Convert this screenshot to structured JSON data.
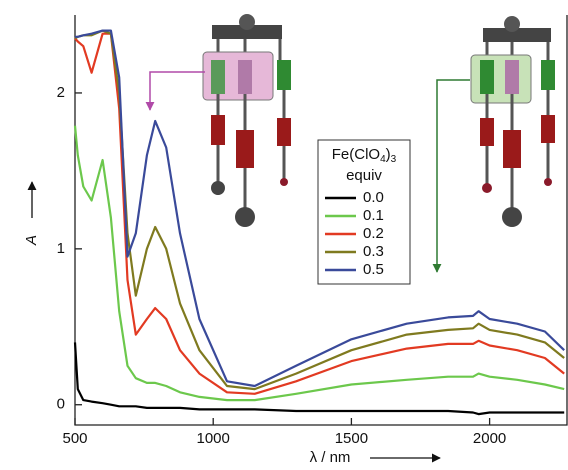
{
  "chart_data": {
    "type": "line",
    "x_label": "λ / nm",
    "y_label": "A",
    "legend_title": [
      "Fe(ClO",
      "4",
      ")",
      "3"
    ],
    "legend_subtitle": "equiv",
    "x": [
      500,
      510,
      530,
      560,
      600,
      630,
      660,
      690,
      720,
      760,
      790,
      830,
      880,
      950,
      1050,
      1150,
      1300,
      1500,
      1700,
      1850,
      1940,
      1960,
      2000,
      2100,
      2200,
      2270
    ],
    "series": [
      {
        "name": "0.0",
        "color": "#000000",
        "values": [
          0.4,
          0.1,
          0.03,
          0.02,
          0.01,
          0.0,
          -0.01,
          -0.01,
          -0.01,
          -0.02,
          -0.02,
          -0.02,
          -0.02,
          -0.03,
          -0.03,
          -0.03,
          -0.04,
          -0.04,
          -0.04,
          -0.04,
          -0.05,
          -0.06,
          -0.05,
          -0.05,
          -0.05,
          -0.05
        ]
      },
      {
        "name": "0.1",
        "color": "#6cc84c",
        "values": [
          1.79,
          1.6,
          1.4,
          1.31,
          1.57,
          1.2,
          0.6,
          0.25,
          0.17,
          0.14,
          0.14,
          0.12,
          0.08,
          0.05,
          0.03,
          0.03,
          0.07,
          0.13,
          0.16,
          0.18,
          0.18,
          0.2,
          0.18,
          0.16,
          0.13,
          0.1
        ]
      },
      {
        "name": "0.2",
        "color": "#e23a22",
        "values": [
          2.35,
          2.33,
          2.3,
          2.13,
          2.38,
          2.38,
          1.9,
          0.8,
          0.45,
          0.55,
          0.62,
          0.55,
          0.35,
          0.2,
          0.08,
          0.07,
          0.15,
          0.28,
          0.36,
          0.39,
          0.39,
          0.41,
          0.38,
          0.35,
          0.3,
          0.2
        ]
      },
      {
        "name": "0.3",
        "color": "#7f7a1f",
        "values": [
          2.35,
          2.36,
          2.37,
          2.37,
          2.4,
          2.38,
          2.0,
          1.1,
          0.7,
          1.0,
          1.14,
          1.0,
          0.65,
          0.35,
          0.12,
          0.1,
          0.2,
          0.35,
          0.45,
          0.48,
          0.49,
          0.52,
          0.48,
          0.45,
          0.4,
          0.3
        ]
      },
      {
        "name": "0.5",
        "color": "#3a4a9a",
        "values": [
          2.36,
          2.36,
          2.37,
          2.38,
          2.4,
          2.4,
          2.1,
          0.95,
          1.1,
          1.6,
          1.82,
          1.65,
          1.1,
          0.55,
          0.15,
          0.12,
          0.25,
          0.42,
          0.52,
          0.56,
          0.57,
          0.6,
          0.55,
          0.52,
          0.47,
          0.35
        ]
      }
    ],
    "xlim": [
      500,
      2280
    ],
    "ylim": [
      -0.13,
      2.5
    ],
    "xticks": [
      500,
      1000,
      1500,
      2000
    ],
    "yticks": [
      0,
      1,
      2
    ]
  }
}
